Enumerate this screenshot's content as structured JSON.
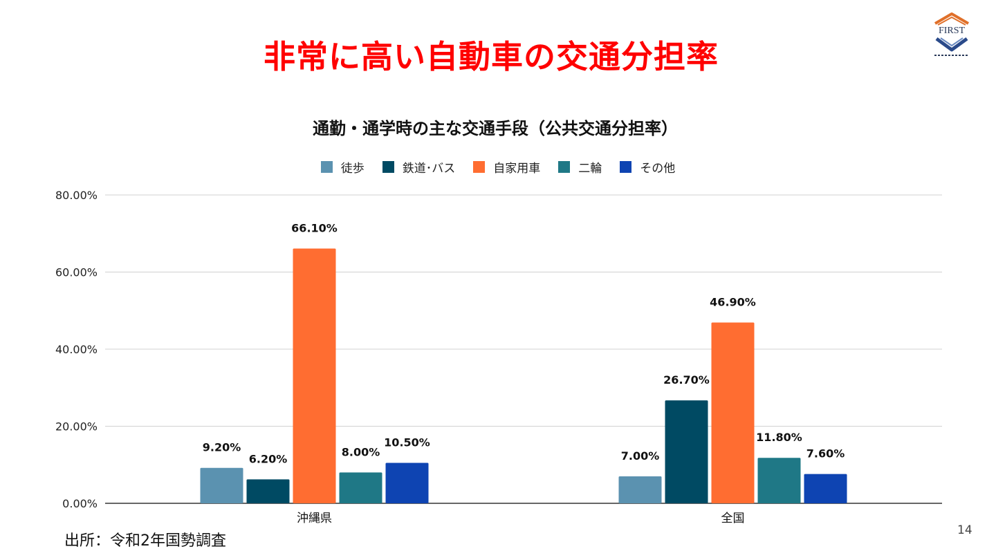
{
  "slide": {
    "title": "非常に高い自動車の交通分担率",
    "source": "出所：令和2年国勢調査",
    "page_number": "14",
    "logo_text": "FIRST"
  },
  "colors": {
    "title": "#ff0000",
    "gridline": "#d0d0d0",
    "axis": "#333333"
  },
  "chart_data": {
    "type": "bar",
    "title": "通勤・通学時の主な交通手段（公共交通分担率）",
    "categories": [
      "沖縄県",
      "全国"
    ],
    "series": [
      {
        "name": "徒歩",
        "color": "#5b92b0",
        "values": [
          9.2,
          7.0
        ],
        "labels": [
          "9.20%",
          "7.00%"
        ]
      },
      {
        "name": "鉄道･バス",
        "color": "#004a63",
        "values": [
          6.2,
          26.7
        ],
        "labels": [
          "6.20%",
          "26.70%"
        ]
      },
      {
        "name": "自家用車",
        "color": "#ff6d31",
        "values": [
          66.1,
          46.9
        ],
        "labels": [
          "66.10%",
          "46.90%"
        ]
      },
      {
        "name": "二輪",
        "color": "#1f7886",
        "values": [
          8.0,
          11.8
        ],
        "labels": [
          "8.00%",
          "11.80%"
        ]
      },
      {
        "name": "その他",
        "color": "#0e44b2",
        "values": [
          10.5,
          7.6
        ],
        "labels": [
          "10.50%",
          "7.60%"
        ]
      }
    ],
    "yticks": [
      0,
      20,
      40,
      60,
      80
    ],
    "ytick_labels": [
      "0.00%",
      "20.00%",
      "40.00%",
      "60.00%",
      "80.00%"
    ],
    "ylim": [
      0,
      80
    ],
    "xlabel": "",
    "ylabel": "",
    "grid": true,
    "legend_position": "top-center"
  }
}
